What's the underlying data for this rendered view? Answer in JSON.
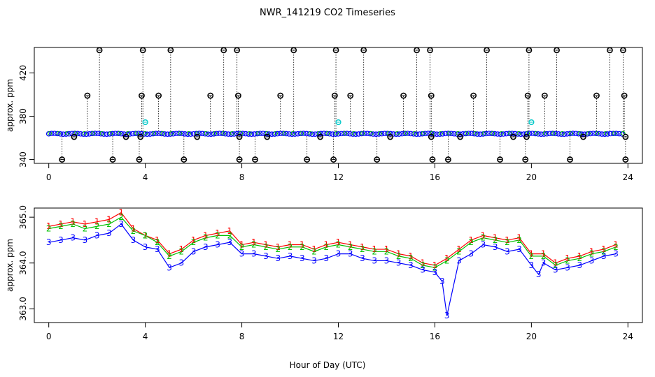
{
  "figure": {
    "title": "NWR_141219  CO2 Timeseries",
    "xlabel": "Hour of Day (UTC)"
  },
  "chart_data": [
    {
      "type": "scatter",
      "name": "upper-panel",
      "title": "NWR_141219  CO2 Timeseries",
      "xlabel": "",
      "ylabel": "approx. ppm",
      "xlim": [
        -0.6,
        24.6
      ],
      "ylim": [
        336.5,
        443.5
      ],
      "xticks": [
        0,
        4,
        8,
        12,
        16,
        20,
        24
      ],
      "yticks": [
        340,
        380,
        420
      ],
      "baseline": 363.8,
      "series": [
        {
          "name": "outliers",
          "color": "#000000",
          "points": [
            [
              0.55,
              340
            ],
            [
              1.05,
              361
            ],
            [
              1.6,
              399
            ],
            [
              2.1,
              441
            ],
            [
              2.65,
              340
            ],
            [
              3.2,
              361
            ],
            [
              3.75,
              340
            ],
            [
              3.85,
              399
            ],
            [
              3.9,
              441
            ],
            [
              3.8,
              361
            ],
            [
              4.55,
              399
            ],
            [
              5.05,
              441
            ],
            [
              5.6,
              340
            ],
            [
              6.15,
              361
            ],
            [
              6.7,
              399
            ],
            [
              7.25,
              441
            ],
            [
              7.8,
              441
            ],
            [
              7.85,
              399
            ],
            [
              7.9,
              340
            ],
            [
              7.9,
              361
            ],
            [
              8.55,
              340
            ],
            [
              9.05,
              361
            ],
            [
              9.6,
              399
            ],
            [
              10.15,
              441
            ],
            [
              10.7,
              340
            ],
            [
              11.25,
              361
            ],
            [
              11.8,
              340
            ],
            [
              11.85,
              399
            ],
            [
              11.9,
              441
            ],
            [
              12.5,
              399
            ],
            [
              13.05,
              441
            ],
            [
              13.6,
              340
            ],
            [
              14.15,
              361
            ],
            [
              14.7,
              399
            ],
            [
              15.25,
              441
            ],
            [
              15.8,
              441
            ],
            [
              15.85,
              399
            ],
            [
              15.9,
              340
            ],
            [
              15.85,
              361
            ],
            [
              16.55,
              340
            ],
            [
              17.05,
              361
            ],
            [
              17.6,
              399
            ],
            [
              18.15,
              441
            ],
            [
              18.7,
              340
            ],
            [
              19.25,
              361
            ],
            [
              19.75,
              340
            ],
            [
              19.85,
              399
            ],
            [
              19.9,
              441
            ],
            [
              19.8,
              361
            ],
            [
              20.55,
              399
            ],
            [
              21.05,
              441
            ],
            [
              21.6,
              340
            ],
            [
              22.15,
              361
            ],
            [
              22.7,
              399
            ],
            [
              23.25,
              441
            ],
            [
              23.8,
              441
            ],
            [
              23.85,
              399
            ],
            [
              23.9,
              340
            ],
            [
              23.9,
              361
            ]
          ]
        },
        {
          "name": "flagged",
          "color": "#00c8c8",
          "points": [
            [
              4.0,
              374.5
            ],
            [
              12.0,
              374.5
            ],
            [
              20.0,
              374.5
            ]
          ]
        }
      ]
    },
    {
      "type": "line",
      "name": "lower-panel",
      "title": "",
      "xlabel": "Hour of Day (UTC)",
      "ylabel": "approx. ppm",
      "xlim": [
        -0.6,
        24.6
      ],
      "ylim": [
        362.7,
        365.2
      ],
      "xticks": [
        0,
        4,
        8,
        12,
        16,
        20,
        24
      ],
      "yticks": [
        363.0,
        364.0,
        365.0
      ],
      "ytick_labels": [
        "363.0",
        "364.0",
        "365.0"
      ],
      "series": [
        {
          "name": "1",
          "marker": "1",
          "color": "#ff0000",
          "x": [
            0.0,
            0.5,
            1.0,
            1.5,
            2.0,
            2.5,
            3.0,
            3.5,
            4.0,
            4.5,
            5.0,
            5.5,
            6.0,
            6.5,
            7.0,
            7.5,
            8.0,
            8.5,
            9.0,
            9.5,
            10.0,
            10.5,
            11.0,
            11.5,
            12.0,
            12.5,
            13.0,
            13.5,
            14.0,
            14.5,
            15.0,
            15.5,
            16.0,
            16.5,
            17.0,
            17.5,
            18.0,
            18.5,
            19.0,
            19.5,
            20.0,
            20.5,
            21.0,
            21.5,
            22.0,
            22.5,
            23.0,
            23.5
          ],
          "values": [
            364.8,
            364.85,
            364.9,
            364.85,
            364.9,
            364.95,
            365.1,
            364.75,
            364.6,
            364.5,
            364.2,
            364.3,
            364.5,
            364.6,
            364.65,
            364.7,
            364.4,
            364.45,
            364.4,
            364.35,
            364.4,
            364.4,
            364.3,
            364.4,
            364.45,
            364.4,
            364.35,
            364.3,
            364.3,
            364.2,
            364.15,
            364.0,
            363.95,
            364.1,
            364.3,
            364.5,
            364.6,
            364.55,
            364.5,
            364.55,
            364.2,
            364.2,
            364.0,
            364.1,
            364.15,
            364.25,
            364.3,
            364.4
          ]
        },
        {
          "name": "2",
          "marker": "2",
          "color": "#00c000",
          "x": [
            0.0,
            0.5,
            1.0,
            1.5,
            2.0,
            2.5,
            3.0,
            3.5,
            4.0,
            4.5,
            5.0,
            5.5,
            6.0,
            6.5,
            7.0,
            7.5,
            8.0,
            8.5,
            9.0,
            9.5,
            10.0,
            10.5,
            11.0,
            11.5,
            12.0,
            12.5,
            13.0,
            13.5,
            14.0,
            14.5,
            15.0,
            15.5,
            16.0,
            16.5,
            17.0,
            17.5,
            18.0,
            18.5,
            19.0,
            19.5,
            20.0,
            20.5,
            21.0,
            21.5,
            22.0,
            22.5,
            23.0,
            23.5
          ],
          "values": [
            364.75,
            364.8,
            364.85,
            364.75,
            364.8,
            364.85,
            365.0,
            364.7,
            364.6,
            364.45,
            364.15,
            364.25,
            364.45,
            364.55,
            364.6,
            364.6,
            364.35,
            364.4,
            364.35,
            364.3,
            364.35,
            364.35,
            364.25,
            364.35,
            364.4,
            364.35,
            364.3,
            364.25,
            364.25,
            364.15,
            364.1,
            363.95,
            363.9,
            364.05,
            364.25,
            364.45,
            364.55,
            364.5,
            364.45,
            364.5,
            364.15,
            364.15,
            363.95,
            364.05,
            364.1,
            364.2,
            364.25,
            364.35
          ]
        },
        {
          "name": "3",
          "marker": "3",
          "color": "#0000ff",
          "x": [
            0.0,
            0.5,
            1.0,
            1.5,
            2.0,
            2.5,
            3.0,
            3.5,
            4.0,
            4.5,
            5.0,
            5.5,
            6.0,
            6.5,
            7.0,
            7.5,
            8.0,
            8.5,
            9.0,
            9.5,
            10.0,
            10.5,
            11.0,
            11.5,
            12.0,
            12.5,
            13.0,
            13.5,
            14.0,
            14.5,
            15.0,
            15.5,
            16.0,
            16.3,
            16.5,
            17.0,
            17.5,
            18.0,
            18.5,
            19.0,
            19.5,
            20.0,
            20.3,
            20.5,
            21.0,
            21.5,
            22.0,
            22.5,
            23.0,
            23.5
          ],
          "values": [
            364.45,
            364.5,
            364.55,
            364.5,
            364.6,
            364.65,
            364.85,
            364.5,
            364.35,
            364.3,
            363.9,
            364.0,
            364.25,
            364.35,
            364.4,
            364.45,
            364.2,
            364.2,
            364.15,
            364.1,
            364.15,
            364.1,
            364.05,
            364.1,
            364.2,
            364.2,
            364.1,
            364.05,
            364.05,
            364.0,
            363.95,
            363.85,
            363.8,
            363.6,
            362.85,
            364.05,
            364.2,
            364.4,
            364.35,
            364.25,
            364.3,
            363.95,
            363.75,
            364.0,
            363.85,
            363.9,
            363.95,
            364.05,
            364.15,
            364.2
          ]
        }
      ]
    }
  ]
}
